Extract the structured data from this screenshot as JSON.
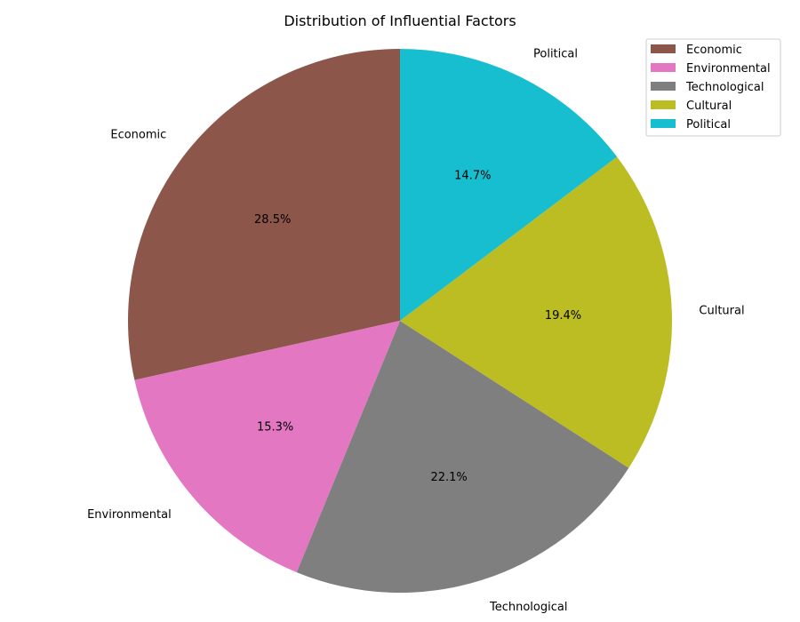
{
  "chart_data": {
    "type": "pie",
    "title": "Distribution of Influential Factors",
    "categories": [
      "Economic",
      "Environmental",
      "Technological",
      "Cultural",
      "Political"
    ],
    "values": [
      28.5,
      15.3,
      22.1,
      19.4,
      14.7
    ],
    "percent_labels": [
      "28.5%",
      "15.3%",
      "22.1%",
      "19.4%",
      "14.7%"
    ],
    "colors": [
      "#8c564b",
      "#e377c2",
      "#7f7f7f",
      "#bcbd22",
      "#17becf"
    ],
    "start_angle_deg": 90,
    "direction": "counterclockwise",
    "legend": {
      "position": "top-right",
      "entries": [
        "Economic",
        "Environmental",
        "Technological",
        "Cultural",
        "Political"
      ]
    }
  }
}
